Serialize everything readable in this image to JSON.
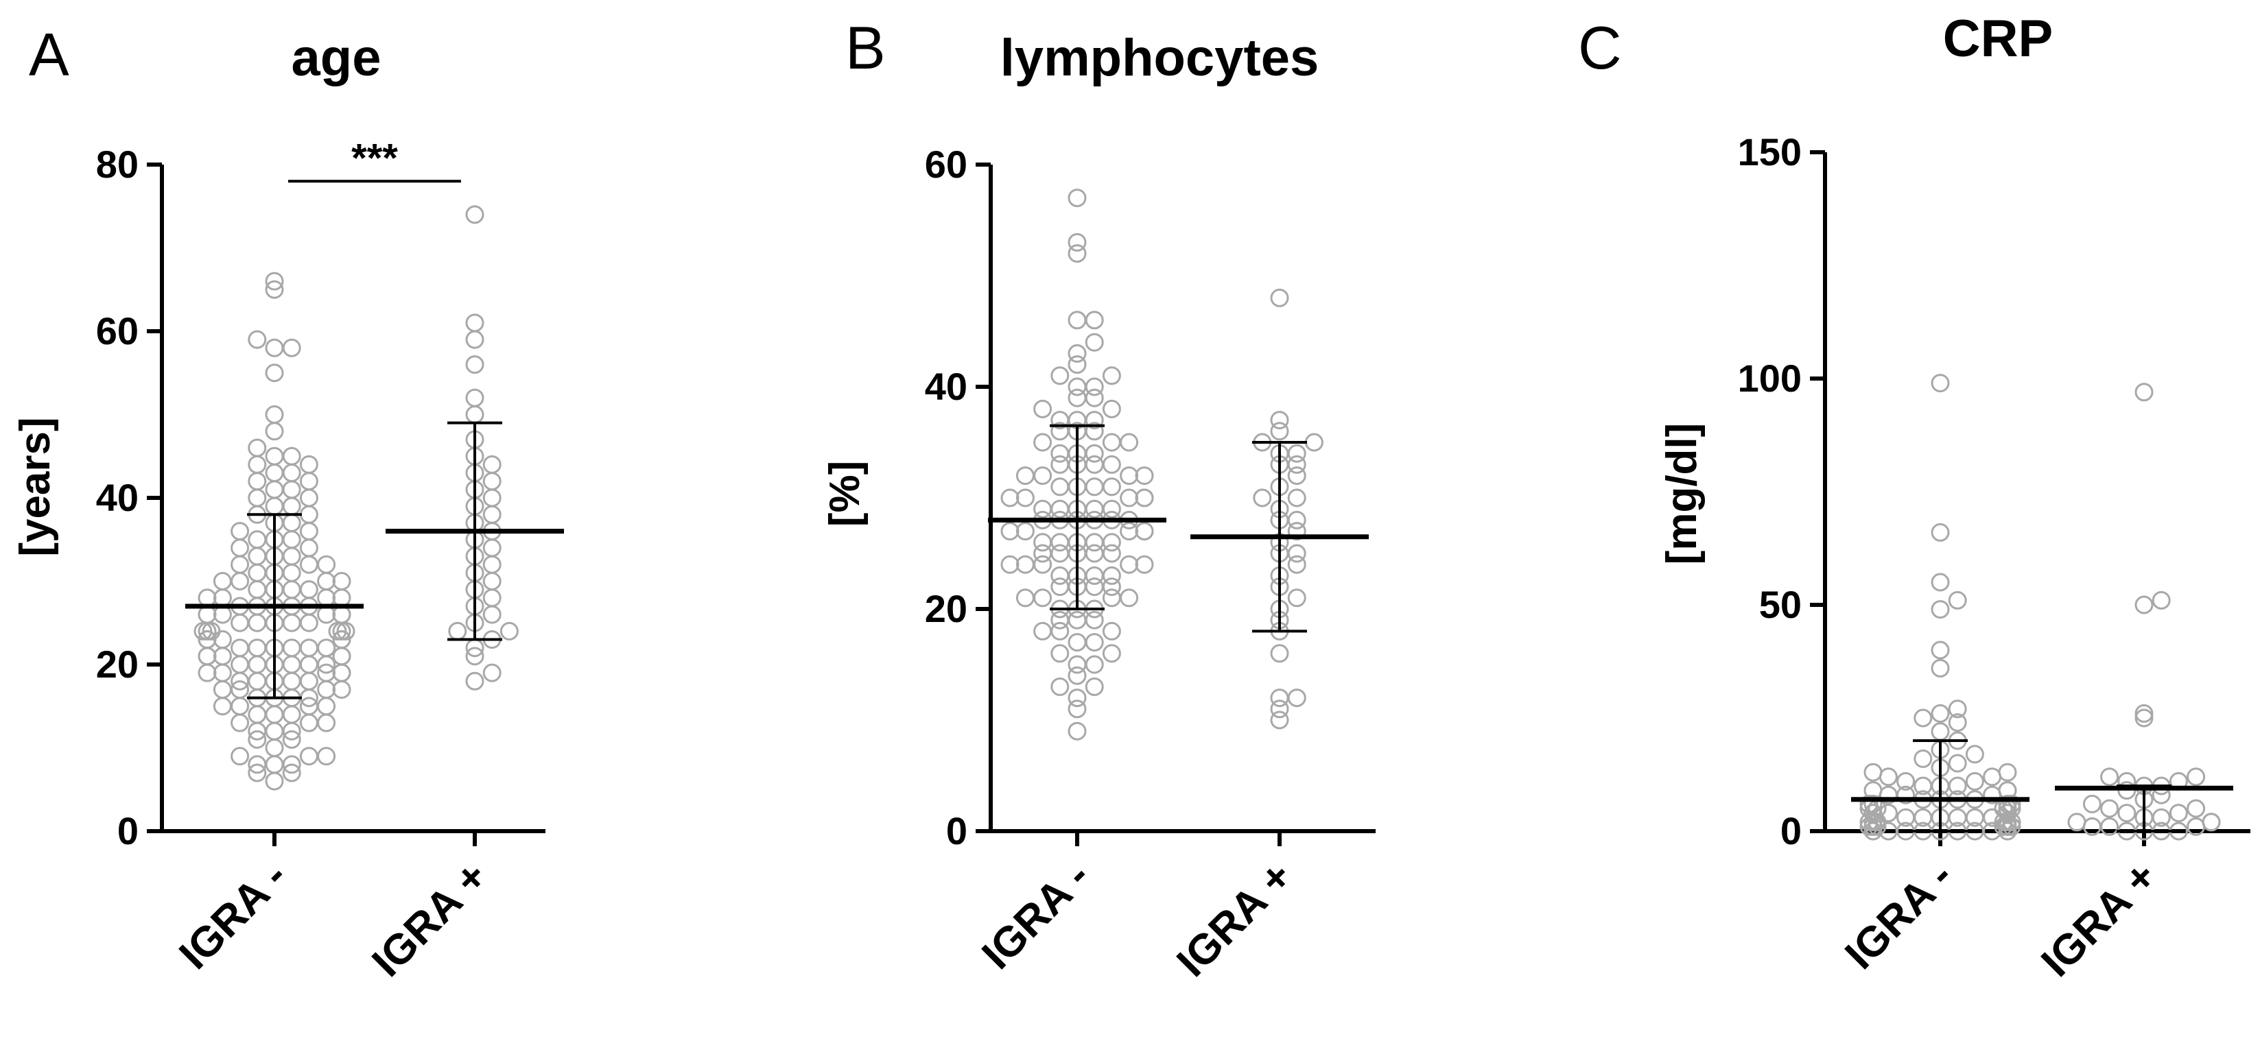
{
  "chart_data": [
    {
      "type": "scatter",
      "panel_letter": "A",
      "title": "age",
      "ylabel": "[years]",
      "xlabel": "",
      "ylim": [
        0,
        80
      ],
      "yticks": [
        "0",
        "20",
        "40",
        "60",
        "80"
      ],
      "categories": [
        "IGRA -",
        "IGRA +"
      ],
      "significance": {
        "text": "***",
        "between": [
          "IGRA -",
          "IGRA +"
        ],
        "at": 78
      },
      "groups": [
        {
          "category": "IGRA -",
          "mean": 27,
          "sd_low": 16,
          "sd_high": 38,
          "values": [
            6,
            7,
            7,
            8,
            8,
            8,
            9,
            9,
            9,
            10,
            11,
            11,
            12,
            12,
            12,
            13,
            13,
            13,
            14,
            14,
            14,
            15,
            15,
            15,
            15,
            16,
            16,
            16,
            16,
            17,
            17,
            17,
            17,
            18,
            18,
            18,
            18,
            18,
            19,
            19,
            19,
            19,
            19,
            20,
            20,
            20,
            20,
            20,
            20,
            21,
            21,
            21,
            21,
            21,
            22,
            22,
            22,
            22,
            22,
            22,
            23,
            23,
            23,
            23,
            23,
            24,
            24,
            24,
            24,
            24,
            24,
            25,
            25,
            25,
            25,
            25,
            26,
            26,
            26,
            26,
            26,
            27,
            27,
            27,
            27,
            27,
            28,
            28,
            28,
            28,
            29,
            29,
            29,
            29,
            30,
            30,
            30,
            30,
            31,
            31,
            31,
            32,
            32,
            32,
            33,
            33,
            33,
            34,
            34,
            35,
            35,
            35,
            36,
            36,
            37,
            37,
            38,
            38,
            39,
            39,
            40,
            40,
            41,
            41,
            42,
            42,
            43,
            43,
            44,
            44,
            45,
            45,
            46,
            48,
            50,
            55,
            58,
            58,
            59,
            65,
            66
          ]
        },
        {
          "category": "IGRA +",
          "mean": 36,
          "sd_low": 23,
          "sd_high": 49,
          "values": [
            18,
            19,
            21,
            22,
            23,
            24,
            24,
            25,
            26,
            27,
            28,
            29,
            30,
            31,
            32,
            33,
            34,
            35,
            36,
            37,
            38,
            39,
            40,
            41,
            42,
            43,
            44,
            45,
            47,
            50,
            52,
            56,
            59,
            61,
            74
          ]
        }
      ]
    },
    {
      "type": "scatter",
      "panel_letter": "B",
      "title": "lymphocytes",
      "ylabel": "[%]",
      "xlabel": "",
      "ylim": [
        0,
        60
      ],
      "yticks": [
        "0",
        "20",
        "40",
        "60"
      ],
      "categories": [
        "IGRA -",
        "IGRA +"
      ],
      "groups": [
        {
          "category": "IGRA -",
          "mean": 28,
          "sd_low": 20,
          "sd_high": 36.5,
          "values": [
            9,
            11,
            12,
            13,
            13,
            14,
            15,
            15,
            16,
            16,
            17,
            17,
            18,
            18,
            18,
            19,
            19,
            19,
            20,
            20,
            20,
            21,
            21,
            21,
            21,
            22,
            22,
            22,
            22,
            23,
            23,
            23,
            23,
            24,
            24,
            24,
            24,
            24,
            25,
            25,
            25,
            25,
            25,
            26,
            26,
            26,
            26,
            26,
            27,
            27,
            27,
            27,
            27,
            28,
            28,
            28,
            28,
            28,
            28,
            29,
            29,
            29,
            29,
            29,
            30,
            30,
            30,
            30,
            30,
            31,
            31,
            31,
            31,
            32,
            32,
            32,
            32,
            33,
            33,
            33,
            33,
            34,
            34,
            34,
            35,
            35,
            35,
            36,
            36,
            36,
            37,
            37,
            37,
            38,
            38,
            39,
            39,
            40,
            40,
            41,
            41,
            42,
            43,
            44,
            46,
            46,
            52,
            53,
            57
          ]
        },
        {
          "category": "IGRA +",
          "mean": 26.5,
          "sd_low": 18,
          "sd_high": 35,
          "values": [
            10,
            11,
            12,
            12,
            16,
            18,
            19,
            20,
            21,
            22,
            23,
            24,
            25,
            25,
            26,
            27,
            28,
            28,
            29,
            30,
            30,
            31,
            32,
            33,
            33,
            34,
            34,
            35,
            35,
            36,
            37,
            48
          ]
        }
      ]
    },
    {
      "type": "scatter",
      "panel_letter": "C",
      "title": "CRP",
      "ylabel": "[mg/dl]",
      "xlabel": "",
      "ylim": [
        0,
        150
      ],
      "yticks": [
        "0",
        "50",
        "100",
        "150"
      ],
      "categories": [
        "IGRA -",
        "IGRA +"
      ],
      "groups": [
        {
          "category": "IGRA -",
          "mean": 7,
          "sd_low": 0,
          "sd_high": 20,
          "values": [
            0,
            0,
            0,
            0,
            0,
            0,
            0,
            0,
            0,
            1,
            1,
            1,
            1,
            1,
            1,
            1,
            2,
            2,
            2,
            2,
            2,
            2,
            3,
            3,
            3,
            3,
            3,
            3,
            4,
            4,
            4,
            4,
            4,
            5,
            5,
            5,
            5,
            5,
            6,
            6,
            6,
            6,
            7,
            7,
            7,
            7,
            8,
            8,
            8,
            9,
            9,
            9,
            10,
            10,
            10,
            11,
            11,
            12,
            12,
            13,
            13,
            14,
            15,
            16,
            17,
            18,
            20,
            22,
            24,
            25,
            26,
            27,
            36,
            40,
            49,
            51,
            55,
            66,
            99
          ]
        },
        {
          "category": "IGRA +",
          "mean": 9.5,
          "sd_low": 0,
          "sd_high": 10,
          "values": [
            0,
            0,
            0,
            0,
            1,
            1,
            1,
            2,
            2,
            2,
            3,
            3,
            4,
            4,
            5,
            5,
            6,
            7,
            8,
            9,
            10,
            10,
            11,
            11,
            12,
            12,
            25,
            26,
            50,
            51,
            97
          ]
        }
      ]
    }
  ]
}
